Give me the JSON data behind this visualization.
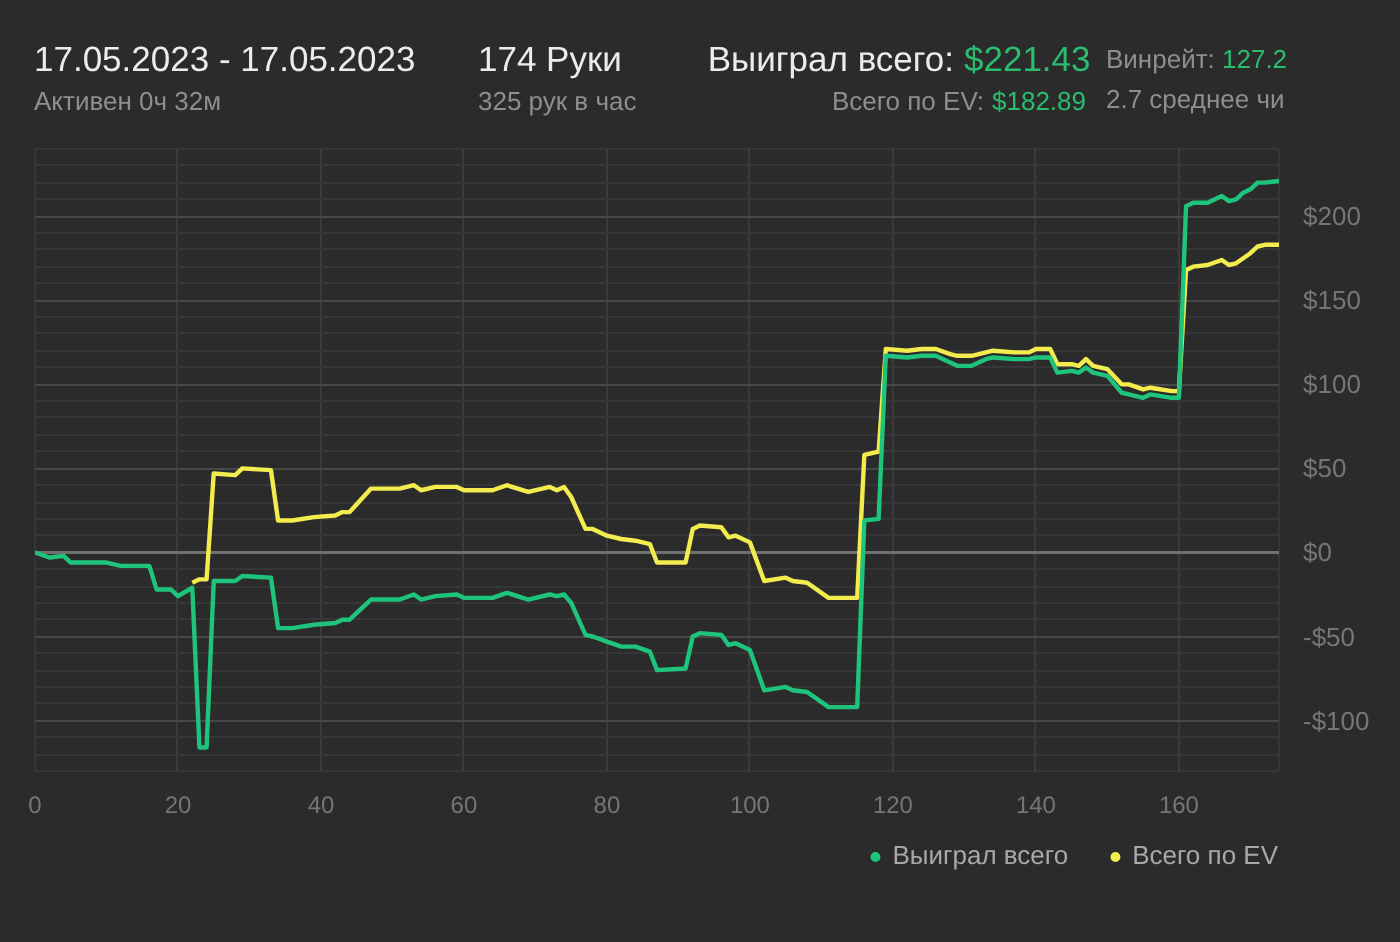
{
  "chart_data": {
    "type": "line",
    "title": "17.05.2023 - 17.05.2023",
    "subtitle": "Активен 0ч 32м",
    "annotations": [
      "174 Руки",
      "325 рук в час",
      "Выиграл всего:",
      "$221.43",
      "Всего по EV:",
      "$182.89",
      "Винрейт:",
      "127.2",
      "2.7 среднее чи"
    ],
    "x": [
      0,
      2,
      4,
      5,
      10,
      12,
      16,
      17,
      19,
      20,
      22,
      23,
      24,
      25,
      28,
      29,
      33,
      34,
      36,
      39,
      42,
      43,
      44,
      47,
      51,
      53,
      54,
      56,
      59,
      60,
      64,
      66,
      69,
      72,
      73,
      74,
      75,
      77,
      78,
      80,
      82,
      84,
      86,
      87,
      91,
      92,
      93,
      96,
      97,
      98,
      100,
      102,
      105,
      106,
      108,
      111,
      115,
      116,
      118,
      119,
      122,
      124,
      126,
      128,
      129,
      131,
      133,
      134,
      137,
      139,
      140,
      142,
      143,
      145,
      146,
      147,
      148,
      150,
      152,
      153,
      155,
      156,
      159,
      160,
      161,
      162,
      164,
      166,
      167,
      168,
      169,
      170,
      171,
      172,
      174
    ],
    "series": [
      {
        "name": "Выиграл всего",
        "color": "#1fc47c",
        "values": [
          0,
          -3,
          -2,
          -6,
          -6,
          -8,
          -8,
          -22,
          -22,
          -26,
          -21,
          -116,
          -116,
          -17,
          -17,
          -14,
          -15,
          -45,
          -45,
          -43,
          -42,
          -40,
          -40,
          -28,
          -28,
          -25,
          -28,
          -26,
          -25,
          -27,
          -27,
          -24,
          -28,
          -25,
          -26,
          -25,
          -30,
          -49,
          -50,
          -53,
          -56,
          -56,
          -59,
          -70,
          -69,
          -50,
          -48,
          -49,
          -55,
          -54,
          -58,
          -82,
          -80,
          -82,
          -83,
          -92,
          -92,
          19,
          20,
          117,
          116,
          117,
          117,
          113,
          111,
          111,
          115,
          116,
          115,
          115,
          116,
          116,
          107,
          108,
          107,
          110,
          107,
          105,
          95,
          94,
          92,
          94,
          92,
          92,
          206,
          208,
          208,
          212,
          209,
          210,
          214,
          216,
          220,
          220,
          221
        ]
      },
      {
        "name": "Всего по EV",
        "color": "#f2ec4e",
        "values": [
          null,
          null,
          null,
          null,
          null,
          null,
          null,
          null,
          null,
          null,
          -18,
          -16,
          -16,
          47,
          46,
          50,
          49,
          19,
          19,
          21,
          22,
          24,
          24,
          38,
          38,
          40,
          37,
          39,
          39,
          37,
          37,
          40,
          36,
          39,
          37,
          39,
          33,
          14,
          14,
          10,
          8,
          7,
          5,
          -6,
          -6,
          14,
          16,
          15,
          9,
          10,
          6,
          -17,
          -15,
          -17,
          -18,
          -27,
          -27,
          58,
          60,
          121,
          120,
          121,
          121,
          118,
          117,
          117,
          119,
          120,
          119,
          119,
          121,
          121,
          112,
          112,
          111,
          115,
          111,
          109,
          100,
          100,
          97,
          98,
          96,
          96,
          168,
          170,
          171,
          174,
          171,
          172,
          175,
          178,
          182,
          183,
          183
        ]
      }
    ],
    "xlim": [
      0,
      174
    ],
    "ylim": [
      -130,
      240
    ],
    "xticks": [
      0,
      20,
      40,
      60,
      80,
      100,
      120,
      140,
      160
    ],
    "yticks": [
      {
        "value": -130,
        "label": null
      },
      {
        "value": -120,
        "label": null
      },
      {
        "value": -110,
        "label": null
      },
      {
        "value": -100,
        "label": "-$100"
      },
      {
        "value": -90,
        "label": null
      },
      {
        "value": -80,
        "label": null
      },
      {
        "value": -70,
        "label": null
      },
      {
        "value": -60,
        "label": null
      },
      {
        "value": -50,
        "label": "-$50"
      },
      {
        "value": -40,
        "label": null
      },
      {
        "value": -30,
        "label": null
      },
      {
        "value": -20,
        "label": null
      },
      {
        "value": -10,
        "label": null
      },
      {
        "value": 0,
        "label": "$0"
      },
      {
        "value": 10,
        "label": null
      },
      {
        "value": 20,
        "label": null
      },
      {
        "value": 30,
        "label": null
      },
      {
        "value": 40,
        "label": null
      },
      {
        "value": 50,
        "label": "$50"
      },
      {
        "value": 60,
        "label": null
      },
      {
        "value": 70,
        "label": null
      },
      {
        "value": 80,
        "label": null
      },
      {
        "value": 90,
        "label": null
      },
      {
        "value": 100,
        "label": "$100"
      },
      {
        "value": 110,
        "label": null
      },
      {
        "value": 120,
        "label": null
      },
      {
        "value": 130,
        "label": null
      },
      {
        "value": 140,
        "label": null
      },
      {
        "value": 150,
        "label": "$150"
      },
      {
        "value": 160,
        "label": null
      },
      {
        "value": 170,
        "label": null
      },
      {
        "value": 180,
        "label": null
      },
      {
        "value": 190,
        "label": null
      },
      {
        "value": 200,
        "label": "$200"
      },
      {
        "value": 210,
        "label": null
      },
      {
        "value": 220,
        "label": null
      },
      {
        "value": 230,
        "label": null
      },
      {
        "value": 240,
        "label": null
      }
    ],
    "ref_lines": [
      {
        "axis": "y",
        "value": 0,
        "color": "#707070"
      }
    ],
    "grid": true,
    "legend": "bottom right"
  }
}
